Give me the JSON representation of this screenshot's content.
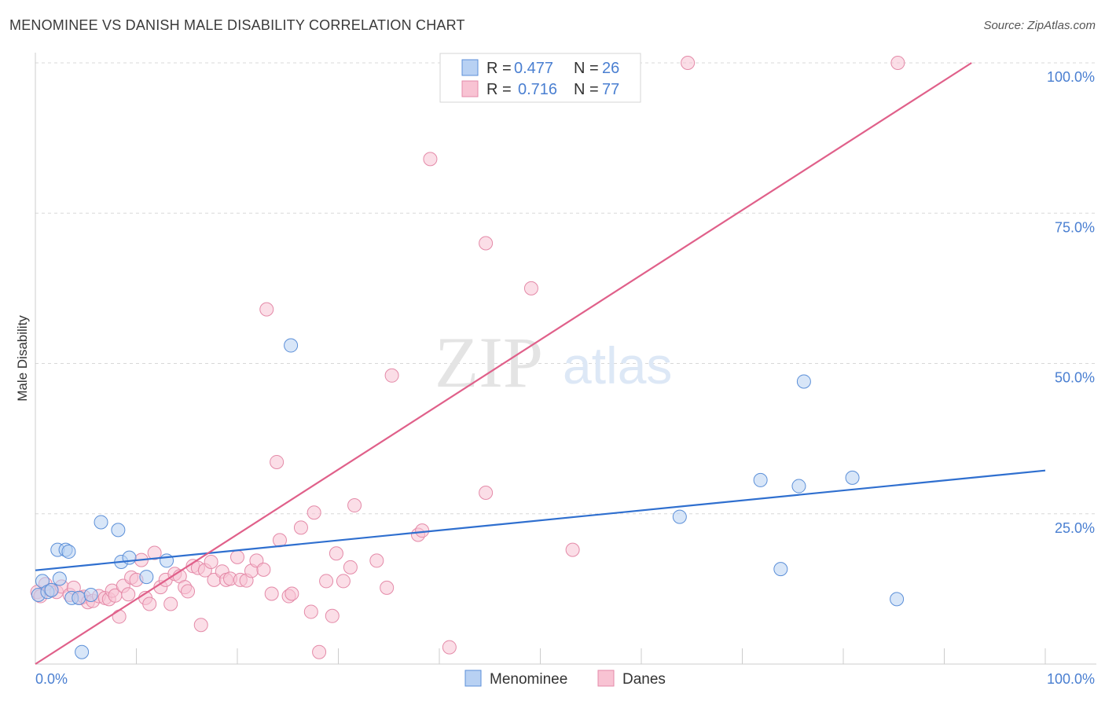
{
  "header": {
    "title": "MENOMINEE VS DANISH MALE DISABILITY CORRELATION CHART",
    "source": "Source: ZipAtlas.com"
  },
  "watermark": {
    "zip": "ZIP",
    "atlas": "atlas"
  },
  "colors": {
    "blue_fill": "#b8d1f3",
    "blue_stroke": "#5b8fd8",
    "blue_line": "#2f6fcf",
    "pink_fill": "#f8c3d3",
    "pink_stroke": "#e48aa8",
    "pink_line": "#e0608a",
    "tick_text": "#4a7fd1",
    "grid": "#d8d8d8"
  },
  "legend_box": {
    "rows": [
      {
        "r_label": "R =",
        "r_value": "0.477",
        "n_label": "N =",
        "n_value": "26",
        "series": "Menominee"
      },
      {
        "r_label": "R =",
        "r_value": "0.716",
        "n_label": "N =",
        "n_value": "77",
        "series": "Danes"
      }
    ]
  },
  "bottom_legend": {
    "items": [
      "Menominee",
      "Danes"
    ]
  },
  "chart_data": {
    "type": "scatter",
    "title": "MENOMINEE VS DANISH MALE DISABILITY CORRELATION CHART",
    "xlabel": "",
    "ylabel": "Male Disability",
    "xlim": [
      0,
      100
    ],
    "ylim": [
      0,
      100
    ],
    "x_tick_labels": [
      {
        "value": 0,
        "label": "0.0%"
      },
      {
        "value": 100,
        "label": "100.0%"
      }
    ],
    "y_tick_labels": [
      {
        "value": 25,
        "label": "25.0%"
      },
      {
        "value": 50,
        "label": "50.0%"
      },
      {
        "value": 75,
        "label": "75.0%"
      },
      {
        "value": 100,
        "label": "100.0%"
      }
    ],
    "series": [
      {
        "name": "Menominee",
        "R": 0.477,
        "N": 26,
        "trend": {
          "x": [
            0,
            100
          ],
          "y": [
            15.6,
            32.2
          ]
        },
        "points": [
          {
            "x": 0.3,
            "y": 11.5
          },
          {
            "x": 0.7,
            "y": 13.8
          },
          {
            "x": 1.2,
            "y": 12.0
          },
          {
            "x": 2.2,
            "y": 19.0
          },
          {
            "x": 2.4,
            "y": 14.2
          },
          {
            "x": 3.0,
            "y": 19.0
          },
          {
            "x": 3.3,
            "y": 18.7
          },
          {
            "x": 3.6,
            "y": 11.0
          },
          {
            "x": 4.3,
            "y": 11.0
          },
          {
            "x": 4.6,
            "y": 2.0
          },
          {
            "x": 5.5,
            "y": 11.5
          },
          {
            "x": 6.5,
            "y": 23.6
          },
          {
            "x": 8.2,
            "y": 22.3
          },
          {
            "x": 8.5,
            "y": 17.0
          },
          {
            "x": 9.3,
            "y": 17.7
          },
          {
            "x": 11.0,
            "y": 14.5
          },
          {
            "x": 13.0,
            "y": 17.2
          },
          {
            "x": 25.3,
            "y": 53.0
          },
          {
            "x": 63.8,
            "y": 24.5
          },
          {
            "x": 71.8,
            "y": 30.6
          },
          {
            "x": 73.8,
            "y": 15.8
          },
          {
            "x": 75.6,
            "y": 29.6
          },
          {
            "x": 76.1,
            "y": 47.0
          },
          {
            "x": 80.9,
            "y": 31.0
          },
          {
            "x": 85.3,
            "y": 10.8
          },
          {
            "x": 1.6,
            "y": 12.3
          }
        ]
      },
      {
        "name": "Danes",
        "R": 0.716,
        "N": 77,
        "trend": {
          "x": [
            0,
            92.7
          ],
          "y": [
            0,
            100
          ]
        },
        "points": [
          {
            "x": 0.2,
            "y": 12.0
          },
          {
            "x": 0.5,
            "y": 11.3
          },
          {
            "x": 1.0,
            "y": 13.3
          },
          {
            "x": 1.5,
            "y": 12.3
          },
          {
            "x": 2.1,
            "y": 12.0
          },
          {
            "x": 2.6,
            "y": 12.9
          },
          {
            "x": 3.4,
            "y": 11.5
          },
          {
            "x": 3.8,
            "y": 12.7
          },
          {
            "x": 4.5,
            "y": 11.0
          },
          {
            "x": 4.8,
            "y": 11.2
          },
          {
            "x": 5.2,
            "y": 10.3
          },
          {
            "x": 5.7,
            "y": 10.5
          },
          {
            "x": 6.3,
            "y": 11.3
          },
          {
            "x": 6.9,
            "y": 11.0
          },
          {
            "x": 7.3,
            "y": 10.8
          },
          {
            "x": 7.6,
            "y": 12.2
          },
          {
            "x": 7.9,
            "y": 11.4
          },
          {
            "x": 8.3,
            "y": 7.9
          },
          {
            "x": 8.7,
            "y": 13.0
          },
          {
            "x": 9.2,
            "y": 11.6
          },
          {
            "x": 9.5,
            "y": 14.4
          },
          {
            "x": 10.0,
            "y": 14.0
          },
          {
            "x": 10.5,
            "y": 17.3
          },
          {
            "x": 10.9,
            "y": 11.0
          },
          {
            "x": 11.3,
            "y": 10.0
          },
          {
            "x": 11.8,
            "y": 18.5
          },
          {
            "x": 12.4,
            "y": 12.8
          },
          {
            "x": 12.9,
            "y": 14.0
          },
          {
            "x": 13.4,
            "y": 10.0
          },
          {
            "x": 13.8,
            "y": 15.0
          },
          {
            "x": 14.3,
            "y": 14.6
          },
          {
            "x": 14.8,
            "y": 12.8
          },
          {
            "x": 15.1,
            "y": 12.1
          },
          {
            "x": 15.6,
            "y": 16.3
          },
          {
            "x": 16.1,
            "y": 16.0
          },
          {
            "x": 16.4,
            "y": 6.5
          },
          {
            "x": 16.8,
            "y": 15.6
          },
          {
            "x": 17.4,
            "y": 17.0
          },
          {
            "x": 17.7,
            "y": 14.0
          },
          {
            "x": 18.5,
            "y": 15.4
          },
          {
            "x": 18.9,
            "y": 14.0
          },
          {
            "x": 19.3,
            "y": 14.2
          },
          {
            "x": 20.0,
            "y": 17.8
          },
          {
            "x": 20.3,
            "y": 14.0
          },
          {
            "x": 20.9,
            "y": 13.9
          },
          {
            "x": 21.4,
            "y": 15.5
          },
          {
            "x": 21.9,
            "y": 17.2
          },
          {
            "x": 22.6,
            "y": 15.7
          },
          {
            "x": 22.9,
            "y": 59.0
          },
          {
            "x": 23.4,
            "y": 11.7
          },
          {
            "x": 23.9,
            "y": 33.6
          },
          {
            "x": 24.2,
            "y": 20.6
          },
          {
            "x": 25.1,
            "y": 11.3
          },
          {
            "x": 25.4,
            "y": 11.7
          },
          {
            "x": 26.3,
            "y": 22.7
          },
          {
            "x": 27.3,
            "y": 8.7
          },
          {
            "x": 27.6,
            "y": 25.2
          },
          {
            "x": 28.1,
            "y": 2.0
          },
          {
            "x": 28.8,
            "y": 13.8
          },
          {
            "x": 29.4,
            "y": 8.0
          },
          {
            "x": 29.8,
            "y": 18.4
          },
          {
            "x": 30.5,
            "y": 13.8
          },
          {
            "x": 31.2,
            "y": 16.1
          },
          {
            "x": 31.6,
            "y": 26.4
          },
          {
            "x": 33.8,
            "y": 17.2
          },
          {
            "x": 34.8,
            "y": 12.7
          },
          {
            "x": 35.3,
            "y": 48.0
          },
          {
            "x": 37.9,
            "y": 21.5
          },
          {
            "x": 38.3,
            "y": 22.2
          },
          {
            "x": 39.1,
            "y": 84.0
          },
          {
            "x": 41.0,
            "y": 2.8
          },
          {
            "x": 44.6,
            "y": 28.5
          },
          {
            "x": 44.6,
            "y": 70.0
          },
          {
            "x": 49.1,
            "y": 62.5
          },
          {
            "x": 53.2,
            "y": 19.0
          },
          {
            "x": 64.6,
            "y": 100.0
          },
          {
            "x": 85.4,
            "y": 100.0
          }
        ]
      }
    ]
  }
}
